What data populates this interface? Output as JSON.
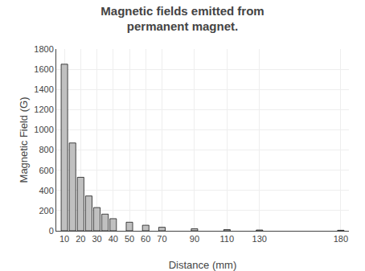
{
  "chart_data": {
    "type": "bar",
    "title": "Magnetic fields emitted from\npermanent magnet.",
    "xlabel": "Distance (mm)",
    "ylabel": "Magnetic Field (G)",
    "x": [
      10,
      15,
      20,
      25,
      30,
      35,
      40,
      50,
      60,
      70,
      90,
      110,
      130,
      180
    ],
    "values": [
      1650,
      870,
      530,
      345,
      230,
      165,
      120,
      85,
      55,
      35,
      20,
      12,
      8,
      5
    ],
    "color": "#c0c0c0",
    "xlim": [
      5,
      185
    ],
    "xticks": [
      10,
      20,
      30,
      40,
      50,
      60,
      70,
      90,
      110,
      130,
      180
    ],
    "ylim": [
      0,
      1800
    ],
    "yticks": [
      0,
      200,
      400,
      600,
      800,
      1000,
      1200,
      1400,
      1600,
      1800
    ],
    "grid": true
  }
}
